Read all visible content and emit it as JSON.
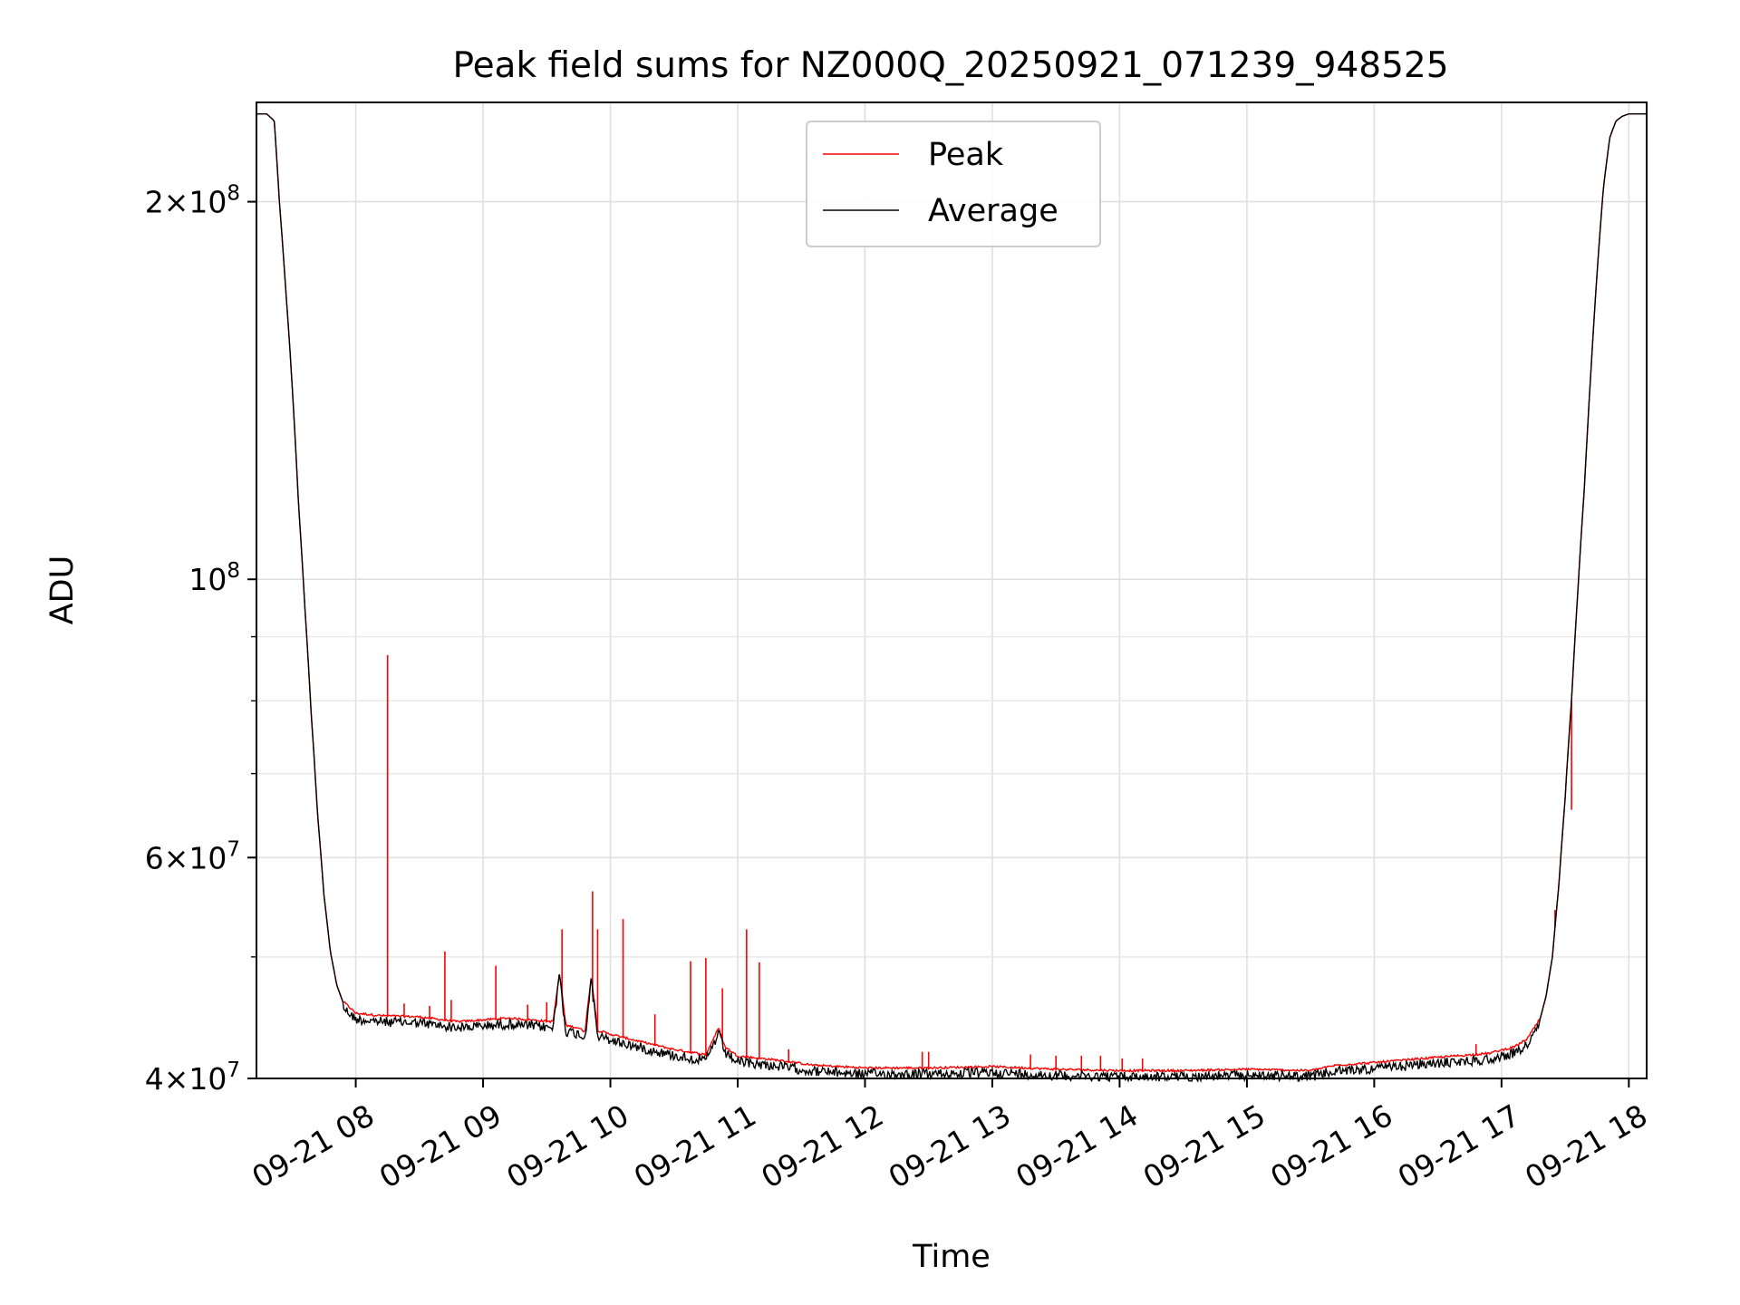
{
  "chart_data": {
    "type": "line",
    "title": "Peak field sums for NZ000Q_20250921_071239_948525",
    "xlabel": "Time",
    "ylabel": "ADU",
    "yscale": "log",
    "grid": true,
    "legend_position": "top-center",
    "x_unit": "hours since 09-21 00:00",
    "xlim": [
      7.22,
      18.14
    ],
    "ylim": [
      40000000,
      240000000
    ],
    "x_ticks": [
      {
        "value": 8,
        "label": "09-21 08"
      },
      {
        "value": 9,
        "label": "09-21 09"
      },
      {
        "value": 10,
        "label": "09-21 10"
      },
      {
        "value": 11,
        "label": "09-21 11"
      },
      {
        "value": 12,
        "label": "09-21 12"
      },
      {
        "value": 13,
        "label": "09-21 13"
      },
      {
        "value": 14,
        "label": "09-21 14"
      },
      {
        "value": 15,
        "label": "09-21 15"
      },
      {
        "value": 16,
        "label": "09-21 16"
      },
      {
        "value": 17,
        "label": "09-21 17"
      },
      {
        "value": 18,
        "label": "09-21 18"
      }
    ],
    "y_ticks": [
      {
        "value": 40000000,
        "base": "4×10",
        "exp": "7"
      },
      {
        "value": 60000000,
        "base": "6×10",
        "exp": "7"
      },
      {
        "value": 100000000,
        "base": "10",
        "exp": "8"
      },
      {
        "value": 200000000,
        "base": "2×10",
        "exp": "8"
      }
    ],
    "y_minor_ticks": [
      50000000,
      70000000,
      80000000,
      90000000
    ],
    "series": [
      {
        "name": "Average",
        "color": "#000000",
        "x": [
          7.22,
          7.3,
          7.36,
          7.4,
          7.45,
          7.5,
          7.55,
          7.6,
          7.65,
          7.7,
          7.75,
          7.8,
          7.85,
          7.9,
          8.0,
          8.2,
          8.5,
          8.8,
          9.2,
          9.55,
          9.6,
          9.65,
          9.75,
          9.8,
          9.85,
          9.9,
          10.0,
          10.2,
          10.5,
          10.75,
          10.85,
          10.9,
          11.0,
          11.3,
          11.6,
          12.0,
          12.5,
          13.0,
          13.5,
          14.0,
          14.5,
          15.0,
          15.5,
          15.7,
          16.0,
          16.5,
          16.9,
          17.1,
          17.2,
          17.3,
          17.35,
          17.4,
          17.45,
          17.5,
          17.55,
          17.6,
          17.65,
          17.7,
          17.75,
          17.8,
          17.85,
          17.9,
          17.95,
          18.0,
          18.14
        ],
        "y": [
          235000000,
          235000000,
          232000000,
          200000000,
          170000000,
          143000000,
          115000000,
          95000000,
          78000000,
          65000000,
          56000000,
          50500000,
          47500000,
          46000000,
          45000000,
          44800000,
          44700000,
          44300000,
          44600000,
          44300000,
          48500000,
          44000000,
          43800000,
          43500000,
          48200000,
          43600000,
          43300000,
          42800000,
          42100000,
          41700000,
          43800000,
          42300000,
          41600000,
          41300000,
          40900000,
          40700000,
          40700000,
          40800000,
          40600000,
          40500000,
          40500000,
          40600000,
          40500000,
          40900000,
          41100000,
          41500000,
          41800000,
          42300000,
          42900000,
          44500000,
          46500000,
          50000000,
          57000000,
          67000000,
          80000000,
          98000000,
          118000000,
          145000000,
          175000000,
          205000000,
          225000000,
          232000000,
          234000000,
          235000000,
          235000000
        ]
      },
      {
        "name": "Peak",
        "color": "#ff0000",
        "spikes": [
          {
            "x": 8.25,
            "y": 87000000
          },
          {
            "x": 8.38,
            "y": 45900000
          },
          {
            "x": 8.58,
            "y": 45700000
          },
          {
            "x": 8.7,
            "y": 50500000
          },
          {
            "x": 8.75,
            "y": 46200000
          },
          {
            "x": 9.1,
            "y": 49200000
          },
          {
            "x": 9.35,
            "y": 45800000
          },
          {
            "x": 9.5,
            "y": 46000000
          },
          {
            "x": 9.62,
            "y": 52600000
          },
          {
            "x": 9.86,
            "y": 56400000
          },
          {
            "x": 9.9,
            "y": 52600000
          },
          {
            "x": 10.1,
            "y": 53600000
          },
          {
            "x": 10.35,
            "y": 45000000
          },
          {
            "x": 10.63,
            "y": 49600000
          },
          {
            "x": 10.75,
            "y": 49900000
          },
          {
            "x": 10.88,
            "y": 47200000
          },
          {
            "x": 11.07,
            "y": 52600000
          },
          {
            "x": 11.17,
            "y": 49500000
          },
          {
            "x": 11.4,
            "y": 42200000
          },
          {
            "x": 12.45,
            "y": 42000000
          },
          {
            "x": 12.5,
            "y": 42000000
          },
          {
            "x": 13.3,
            "y": 41800000
          },
          {
            "x": 13.5,
            "y": 41700000
          },
          {
            "x": 13.7,
            "y": 41700000
          },
          {
            "x": 13.85,
            "y": 41700000
          },
          {
            "x": 14.02,
            "y": 41500000
          },
          {
            "x": 14.18,
            "y": 41500000
          },
          {
            "x": 16.8,
            "y": 42600000
          },
          {
            "x": 17.42,
            "y": 54500000
          },
          {
            "x": 17.55,
            "y": 65500000
          }
        ]
      }
    ]
  }
}
